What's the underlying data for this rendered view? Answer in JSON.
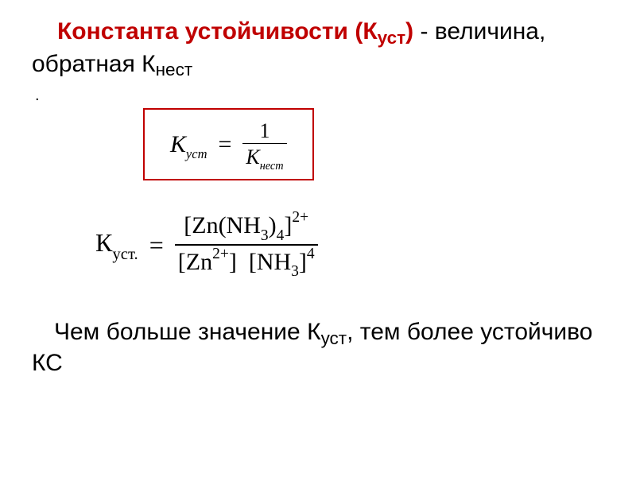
{
  "heading": {
    "term": "Константа устойчивости",
    "symbol_open": " (К",
    "symbol_sub": "уст",
    "symbol_close": ")",
    "rest1": " - величина, обратная К",
    "rest1_sub": "нест"
  },
  "period": ".",
  "eq1": {
    "lhs_k": "К",
    "lhs_sub": "уст",
    "eq": "=",
    "num": "1",
    "den_k": "К",
    "den_sub": "нест"
  },
  "eq2": {
    "lhs_k": "К",
    "lhs_sub": "уст.",
    "eq": "=",
    "num_open": "[Zn(NH",
    "num_nh3_sub": "3",
    "num_mid": ")",
    "num_close_sub": "4",
    "num_close": "]",
    "num_charge": "2+",
    "den_zn": "[Zn",
    "den_zn_charge": "2+",
    "den_zn_close": "]",
    "den_gap": "  ",
    "den_nh": "[NH",
    "den_nh_sub": "3",
    "den_nh_close": "]",
    "den_nh_exp": "4"
  },
  "bottom": {
    "l1a": "Чем больше значение К",
    "l1_sub": "уст",
    "l1b": ", тем более устойчиво КС"
  },
  "colors": {
    "accent": "#c00000",
    "text": "#000000",
    "bg": "#ffffff"
  }
}
